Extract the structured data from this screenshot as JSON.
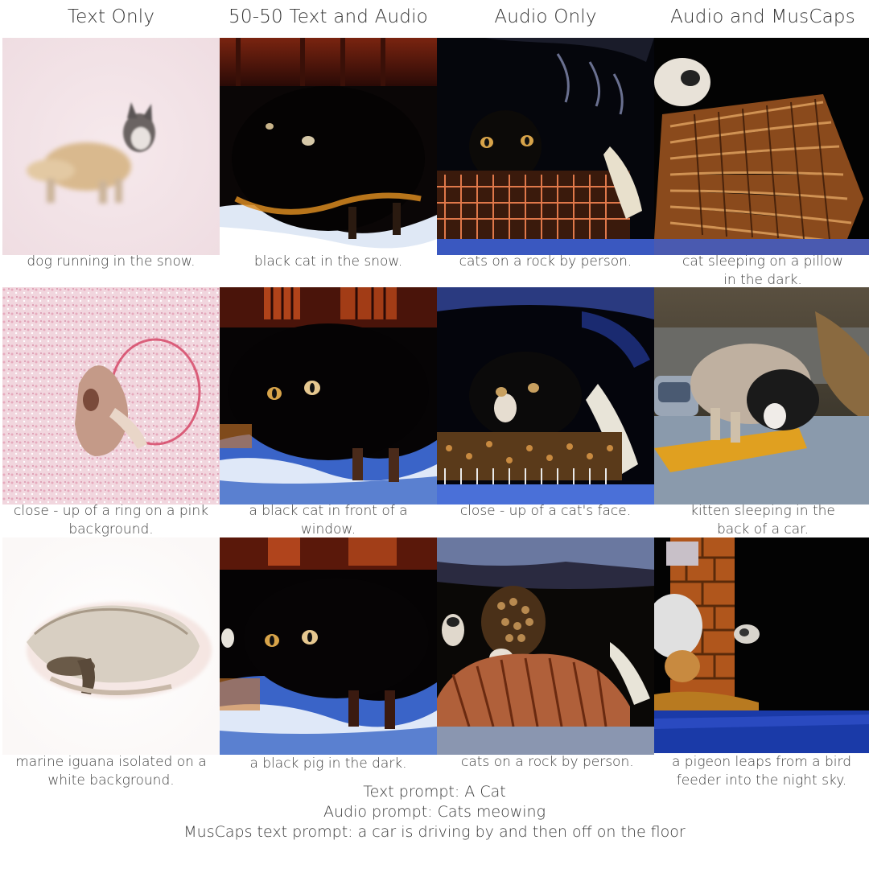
{
  "columns": {
    "text_only": "Text Only",
    "fifty_fifty": "50-50 Text and Audio",
    "audio_only": "Audio Only",
    "audio_muscaps": "Audio and MusCaps"
  },
  "rows": [
    {
      "text_only": "dog running in the snow.",
      "fifty_fifty": "black cat in the snow.",
      "audio_only": "cats on a rock by person.",
      "audio_muscaps": "cat sleeping on a pillow in the dark."
    },
    {
      "text_only": "close - up of a ring on a pink background.",
      "fifty_fifty": "a black cat in front of a window.",
      "audio_only": "close - up of a cat's face.",
      "audio_muscaps": "kitten sleeping in the back of a car."
    },
    {
      "text_only": "marine iguana isolated on a white background.",
      "fifty_fifty": "a black pig in the dark.",
      "audio_only": "cats on a rock by person.",
      "audio_muscaps": "a pigeon leaps from a bird feeder into the night sky."
    }
  ],
  "footer": {
    "text_prompt": "Text prompt: A Cat",
    "audio_prompt": "Audio prompt: Cats meowing",
    "muscaps_prompt": "MusCaps text prompt: a car is driving by and then off on the floor"
  }
}
